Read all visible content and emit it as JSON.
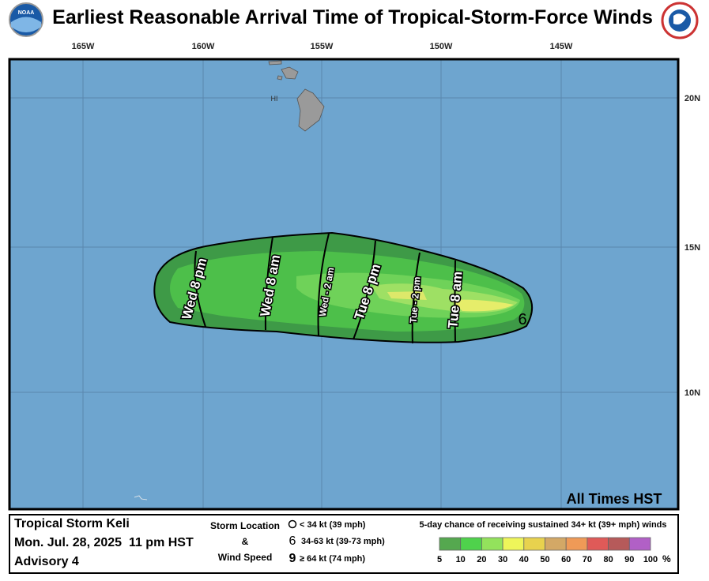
{
  "header": {
    "title": "Earliest Reasonable Arrival Time of Tropical-Storm-Force Winds"
  },
  "map": {
    "longitude_labels": [
      "165W",
      "160W",
      "155W",
      "150W",
      "145W"
    ],
    "latitude_labels": [
      "20N",
      "15N",
      "10N"
    ],
    "island_label": "HI",
    "time_labels": [
      "Wed 8 pm",
      "Wed 8 am",
      "Wed - 2 am",
      "Tue 8 pm",
      "Tue - 2 pm",
      "Tue 8 am"
    ],
    "note": "All Times HST"
  },
  "footer": {
    "storm": {
      "name": "Tropical Storm Keli",
      "date": "Mon. Jul. 28, 2025  11 pm HST",
      "advisory": "Advisory 4"
    },
    "key": {
      "title_top": "Storm Location",
      "title_mid": "&",
      "title_bottom": "Wind Speed",
      "items": [
        "< 34 kt (39 mph)",
        "34-63 kt (39-73 mph)",
        "≥ 64 kt (74 mph)"
      ]
    },
    "probability": {
      "title": "5-day chance of receiving sustained 34+ kt (39+ mph) winds",
      "labels": [
        "5",
        "10",
        "20",
        "30",
        "40",
        "50",
        "60",
        "70",
        "80",
        "90",
        "100"
      ],
      "unit": "%"
    }
  }
}
